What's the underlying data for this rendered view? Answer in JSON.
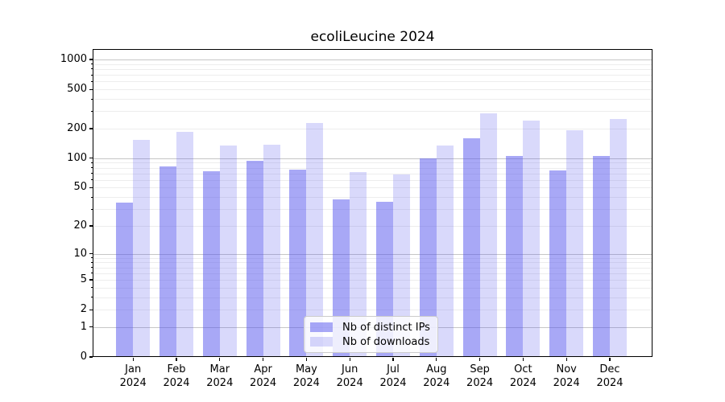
{
  "chart_data": {
    "type": "bar",
    "title": "ecoliLeucine 2024",
    "year": "2024",
    "categories": [
      "Jan",
      "Feb",
      "Mar",
      "Apr",
      "May",
      "Jun",
      "Jul",
      "Aug",
      "Sep",
      "Oct",
      "Nov",
      "Dec"
    ],
    "series": [
      {
        "name": "Nb of distinct IPs",
        "color": "rgba(82,82,237,0.50)",
        "base_hex": "#5252ed",
        "values": [
          35,
          83,
          74,
          95,
          77,
          38,
          36,
          100,
          160,
          105,
          75,
          106
        ]
      },
      {
        "name": "Nb of downloads",
        "color": "rgba(82,82,237,0.22)",
        "base_hex": "#5252ed",
        "values": [
          153,
          185,
          136,
          138,
          230,
          73,
          68,
          135,
          288,
          240,
          193,
          252
        ]
      }
    ],
    "yscale": "symlog",
    "ylim": [
      0,
      1277
    ],
    "y_tick_values": [
      0,
      1,
      2,
      5,
      10,
      20,
      50,
      100,
      200,
      500,
      1000
    ],
    "xlabel": "",
    "ylabel": "",
    "grid": true,
    "legend_position": "lower center",
    "grid_major_color": "#c6c6c6",
    "grid_minor_color": "#ededed"
  }
}
